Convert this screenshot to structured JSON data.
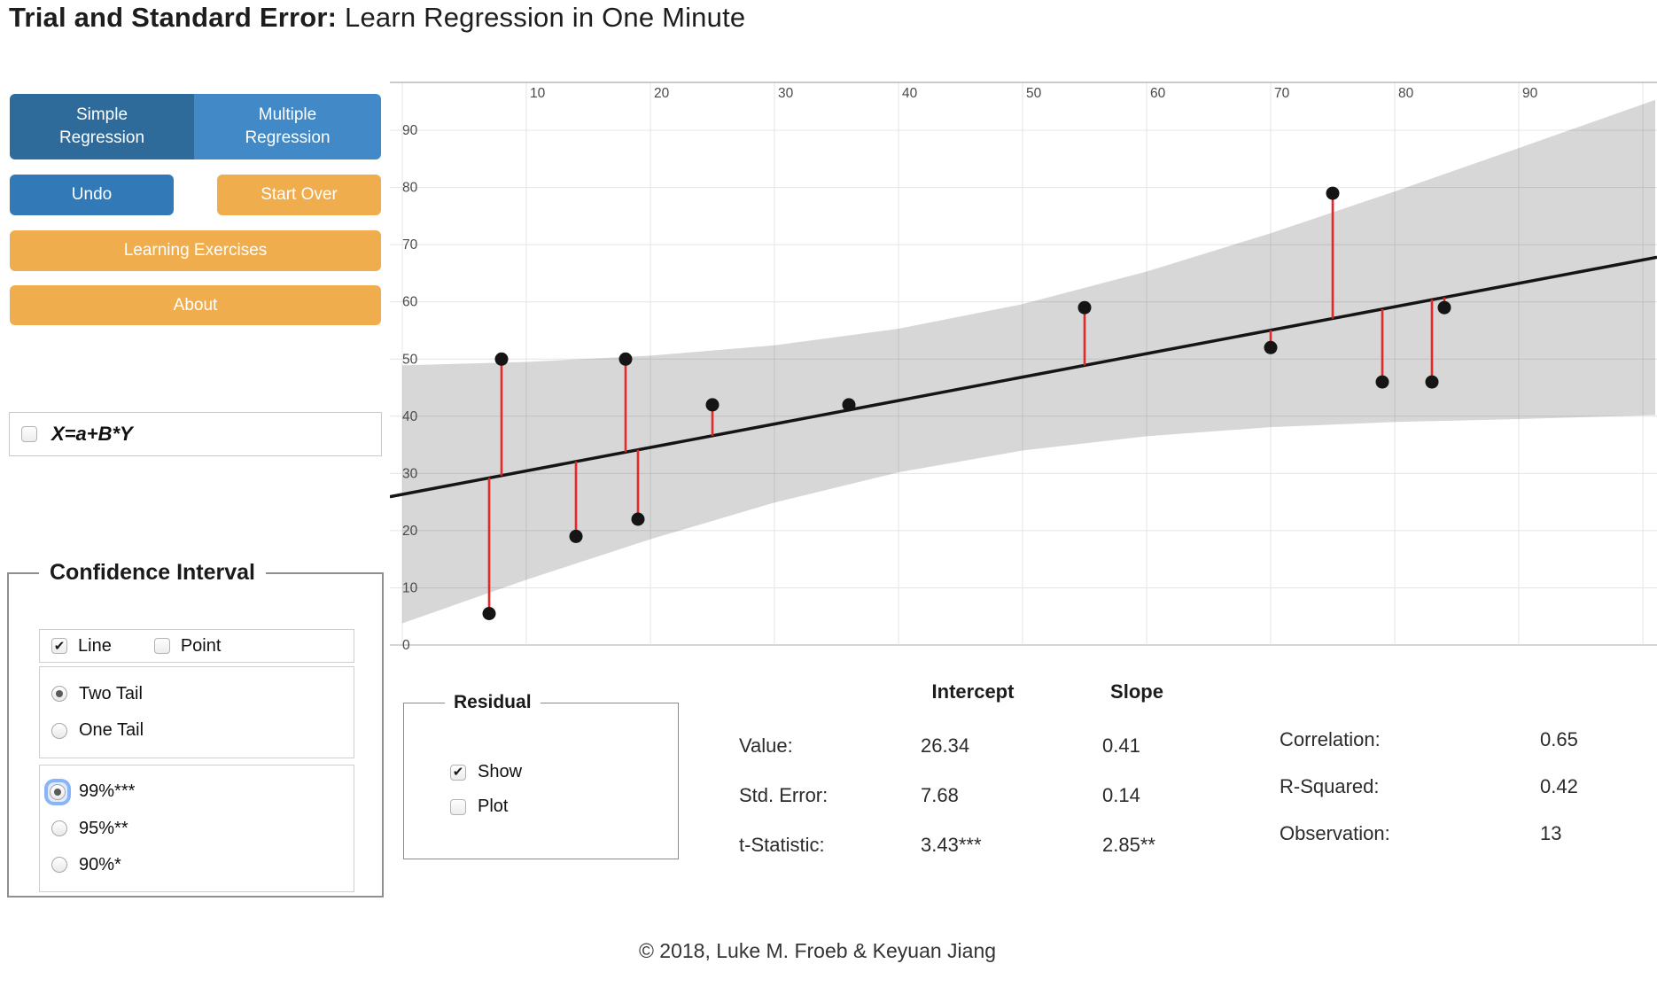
{
  "title": {
    "bold": "Trial and Standard Error:",
    "rest": " Learn Regression in One Minute"
  },
  "toolbar": {
    "simple_regression": "Simple\nRegression",
    "multiple_regression": "Multiple\nRegression",
    "undo": "Undo",
    "start_over": "Start Over",
    "learning_exercises": "Learning Exercises",
    "about": "About"
  },
  "formula": {
    "label": "X=a+B*Y",
    "checked": false
  },
  "confidence_panel": {
    "legend": "Confidence Interval",
    "line_label": "Line",
    "line_checked": true,
    "point_label": "Point",
    "point_checked": false,
    "tail_options": [
      {
        "label": "Two Tail",
        "selected": true
      },
      {
        "label": "One Tail",
        "selected": false
      }
    ],
    "level_options": [
      {
        "label": "99%***",
        "selected": true
      },
      {
        "label": "95%**",
        "selected": false
      },
      {
        "label": "90%*",
        "selected": false
      }
    ]
  },
  "residual_panel": {
    "legend": "Residual",
    "show_label": "Show",
    "show_checked": true,
    "plot_label": "Plot",
    "plot_checked": false
  },
  "stats_table": {
    "col_headers": [
      "Intercept",
      "Slope"
    ],
    "rows": [
      {
        "label": "Value:",
        "intercept": "26.34",
        "slope": "0.41"
      },
      {
        "label": "Std. Error:",
        "intercept": "7.68",
        "slope": "0.14"
      },
      {
        "label": "t-Statistic:",
        "intercept": "3.43***",
        "slope": "2.85**"
      }
    ]
  },
  "summary_table": {
    "rows": [
      {
        "label": "Correlation:",
        "value": "0.65"
      },
      {
        "label": "R-Squared:",
        "value": "0.42"
      },
      {
        "label": "Observation:",
        "value": "13"
      }
    ]
  },
  "footer": "© 2018, Luke M. Froeb & Keyuan Jiang",
  "colors": {
    "active_blue": "#2e6b9b",
    "blue": "#4189c7",
    "undo_blue": "#3279b7",
    "orange": "#f0ad4e",
    "table_green": "#dcecd4",
    "residual_red": "#e82828",
    "point_black": "#151515",
    "band_gray": "rgba(0,0,0,0.155)",
    "grid_gray": "#e4e4e4"
  },
  "chart_data": {
    "type": "scatter",
    "title": "",
    "xlabel": "",
    "ylabel": "",
    "xlim": [
      0,
      101
    ],
    "ylim": [
      0,
      101
    ],
    "grid": true,
    "x_ticks": [
      10,
      20,
      30,
      40,
      50,
      60,
      70,
      80,
      90
    ],
    "y_ticks": [
      0,
      10,
      20,
      30,
      40,
      50,
      60,
      70,
      80,
      90
    ],
    "points": [
      [
        7,
        5.5
      ],
      [
        8,
        50
      ],
      [
        14,
        19
      ],
      [
        18,
        50
      ],
      [
        19,
        22
      ],
      [
        25,
        42
      ],
      [
        36,
        42
      ],
      [
        55,
        59
      ],
      [
        70,
        52
      ],
      [
        75,
        79
      ],
      [
        79,
        46
      ],
      [
        83,
        46
      ],
      [
        84,
        59
      ]
    ],
    "regression_line": {
      "intercept": 26.34,
      "slope": 0.41
    },
    "residual_lines": true,
    "confidence_band": {
      "x": [
        0,
        10,
        20,
        30,
        40,
        50,
        60,
        70,
        80,
        90,
        101
      ],
      "upper": [
        48.9,
        49.5,
        50.6,
        52.4,
        55.3,
        59.6,
        65.3,
        72.0,
        79.3,
        86.9,
        95.3
      ],
      "lower": [
        3.8,
        11.4,
        18.5,
        24.9,
        30.2,
        34.0,
        36.5,
        38.1,
        39.0,
        39.5,
        40.2
      ]
    }
  }
}
